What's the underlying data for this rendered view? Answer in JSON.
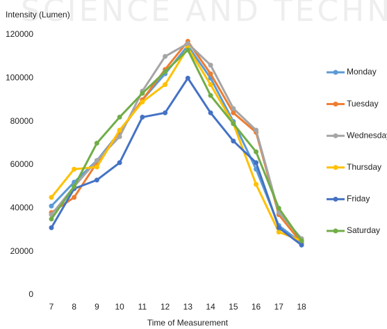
{
  "chart_data": {
    "type": "line",
    "watermark": "SCIENCE AND TECHN",
    "y_label": "Intensity (Lumen)",
    "x_label": "Time of Measurement",
    "x": [
      7,
      8,
      9,
      10,
      11,
      12,
      13,
      14,
      15,
      16,
      17,
      18
    ],
    "xlim": [
      6.5,
      18.5
    ],
    "xticks": [
      7,
      8,
      9,
      10,
      11,
      12,
      13,
      14,
      15,
      16,
      17,
      18
    ],
    "ylim": [
      0,
      120000
    ],
    "yticks": [
      0,
      20000,
      40000,
      60000,
      80000,
      100000,
      120000
    ],
    "grid": false,
    "legend": "right",
    "series": [
      {
        "name": "Monday",
        "color": "#5b9bd5",
        "values": [
          41000,
          52000,
          62000,
          75000,
          90000,
          102000,
          115000,
          100000,
          80000,
          58000,
          32000,
          24000
        ]
      },
      {
        "name": "Tuesday",
        "color": "#ed7d31",
        "values": [
          38000,
          45000,
          61000,
          75000,
          90000,
          104000,
          117000,
          102000,
          84000,
          75000,
          37000,
          24000
        ]
      },
      {
        "name": "Wednesday",
        "color": "#a5a5a5",
        "values": [
          37000,
          50000,
          62000,
          73000,
          94000,
          110000,
          116000,
          106000,
          86000,
          76000,
          38000,
          26000
        ]
      },
      {
        "name": "Thursday",
        "color": "#ffc000",
        "values": [
          45000,
          58000,
          59000,
          76000,
          89000,
          97000,
          114000,
          97000,
          79000,
          51000,
          29000,
          25000
        ]
      },
      {
        "name": "Friday",
        "color": "#4472c4",
        "values": [
          31000,
          49000,
          53000,
          61000,
          82000,
          84000,
          100000,
          84000,
          71000,
          61000,
          31000,
          23000
        ]
      },
      {
        "name": "Saturday",
        "color": "#70ad47",
        "values": [
          35000,
          50000,
          70000,
          82000,
          93000,
          103000,
          113000,
          92000,
          79000,
          66000,
          40000,
          25000
        ]
      }
    ]
  }
}
